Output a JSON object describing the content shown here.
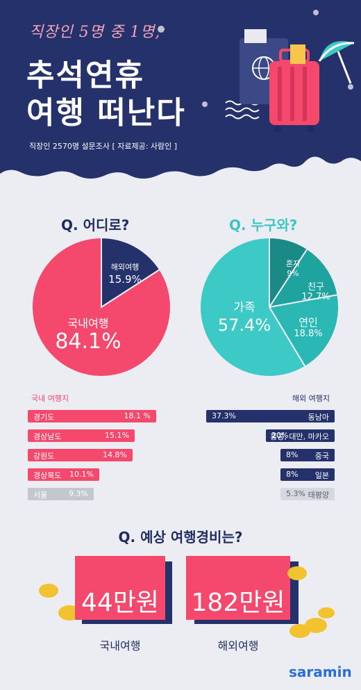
{
  "header": {
    "subtitle": "직장인 5명 중 1명,",
    "title_line1": "추석연휴",
    "title_line2": "여행 떠난다",
    "survey": "직장인 2570명 설문조사 [ 자료제공: 사람인 ]"
  },
  "q_where": {
    "title": "Q. 어디로?",
    "slices": [
      {
        "label": "해외여행",
        "value": 15.9,
        "value_text": "15.9%",
        "color": "#24316a"
      },
      {
        "label": "국내여행",
        "value": 84.1,
        "value_text": "84.1%",
        "color": "#f4486c"
      }
    ]
  },
  "q_who": {
    "title": "Q. 누구와?",
    "slices": [
      {
        "label": "혼자",
        "value": 9,
        "value_text": "9%",
        "color": "#1a8a86"
      },
      {
        "label": "친구",
        "value": 12.7,
        "value_text": "12.7%",
        "color": "#1fa39f"
      },
      {
        "label": "연인",
        "value": 18.8,
        "value_text": "18.8%",
        "color": "#2bb8b5"
      },
      {
        "label": "가족",
        "value": 57.4,
        "value_text": "57.4%",
        "color": "#3dc9c6"
      }
    ]
  },
  "domestic": {
    "title": "국내 여행지",
    "items": [
      {
        "name": "경기도",
        "value": 18.1,
        "value_text": "18.1 %"
      },
      {
        "name": "경상남도",
        "value": 15.1,
        "value_text": "15.1%"
      },
      {
        "name": "강원도",
        "value": 14.8,
        "value_text": "14.8%"
      },
      {
        "name": "경상북도",
        "value": 10.1,
        "value_text": "10.1%"
      },
      {
        "name": "서울",
        "value": 9.3,
        "value_text": "9.3%"
      }
    ]
  },
  "overseas": {
    "title": "해외 여행지",
    "items": [
      {
        "name": "동남아",
        "value": 37.3,
        "value_text": "37.3%"
      },
      {
        "name": "홍콩, 대만, 마카오",
        "value": 20,
        "value_text": "20%"
      },
      {
        "name": "중국",
        "value": 8,
        "value_text": "8%"
      },
      {
        "name": "일본",
        "value": 8,
        "value_text": "8%"
      },
      {
        "name": "태평양",
        "value": 5.3,
        "value_text": "5.3%"
      }
    ]
  },
  "cost": {
    "title": "Q. 예상 여행경비는?",
    "domestic_value": "44만원",
    "domestic_label": "국내여행",
    "overseas_value": "182만원",
    "overseas_label": "해외여행"
  },
  "logo": "saramin",
  "colors": {
    "navy": "#24316a",
    "pink": "#f4486c",
    "teal": "#3dc9c6",
    "gray": "#b5b8c2"
  }
}
